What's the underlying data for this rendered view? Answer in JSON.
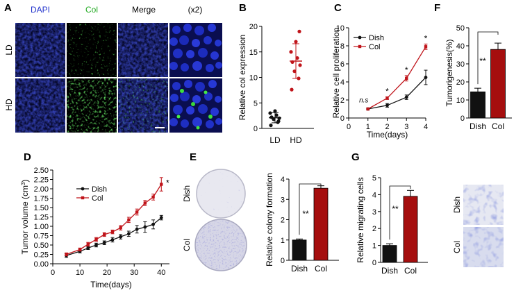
{
  "figure": {
    "panelA": {
      "letter": "A",
      "columns": [
        "DAPI",
        "Col",
        "Merge",
        "(x2)"
      ],
      "column_colors": [
        "#2233cc",
        "#22aa22",
        "#111111",
        "#111111"
      ],
      "rows": [
        "LD",
        "HD"
      ]
    },
    "panelB": {
      "letter": "B"
    },
    "panelC": {
      "letter": "C"
    },
    "panelD": {
      "letter": "D"
    },
    "panelE": {
      "letter": "E",
      "plate_labels": [
        "Dish",
        "Col"
      ]
    },
    "panelF": {
      "letter": "F"
    },
    "panelG": {
      "letter": "G",
      "image_labels": [
        "Dish",
        "Col"
      ]
    }
  },
  "colors": {
    "dish": "#111111",
    "col": "#c0141a",
    "col_bar": "#a50e0e",
    "dapi": "#1e2aa8",
    "col_stain": "#2ac02a",
    "crystal": "#5a5ab4"
  },
  "chart_data": [
    {
      "id": "B",
      "type": "scatter",
      "title": "",
      "xlabel": "",
      "ylabel": "Relative col expression",
      "categories": [
        "LD",
        "HD"
      ],
      "ylim": [
        0,
        20
      ],
      "yticks": [
        "0",
        "5",
        "10",
        "15",
        "20"
      ],
      "series": [
        {
          "name": "LD",
          "color": "#111111",
          "values": [
            0.6,
            1.2,
            1.8,
            2.0,
            2.2,
            2.6,
            3.0,
            3.4,
            1.4
          ],
          "mean": 2.1,
          "sd": 1.0
        },
        {
          "name": "HD",
          "color": "#c0141a",
          "values": [
            7.6,
            9.8,
            11.2,
            12.4,
            13.0,
            13.8,
            15.0,
            17.0,
            19.0
          ],
          "mean": 13.2,
          "sd": 3.4
        }
      ]
    },
    {
      "id": "C",
      "type": "line",
      "title": "",
      "xlabel": "Time(days)",
      "ylabel": "Relative cell proliferation",
      "x": [
        1,
        2,
        3,
        4
      ],
      "xticks": [
        "0",
        "1",
        "2",
        "3",
        "4"
      ],
      "xlim": [
        0,
        4
      ],
      "ylim": [
        0,
        10
      ],
      "yticks": [
        "0",
        "2",
        "4",
        "6",
        "8",
        "10"
      ],
      "series": [
        {
          "name": "Dish",
          "color": "#111111",
          "values": [
            1.0,
            1.4,
            2.3,
            4.5
          ],
          "err": [
            0.1,
            0.2,
            0.25,
            0.8
          ]
        },
        {
          "name": "Col",
          "color": "#c0141a",
          "values": [
            1.0,
            2.2,
            4.4,
            7.9
          ],
          "err": [
            0.1,
            0.15,
            0.3,
            0.3
          ]
        }
      ],
      "annotations": [
        "n.s",
        "*",
        "*",
        "*"
      ],
      "legend": "top-left"
    },
    {
      "id": "D",
      "type": "line",
      "title": "",
      "xlabel": "Time(days)",
      "ylabel": "Tumor volume (cm",
      "ylabel_sup": "3",
      "ylabel_tail": ")",
      "x": [
        5,
        10,
        13,
        16,
        19,
        22,
        25,
        28,
        31,
        34,
        37,
        40
      ],
      "xticks": [
        "0",
        "10",
        "20",
        "30",
        "40"
      ],
      "xlim": [
        0,
        43
      ],
      "ylim": [
        0,
        2.5
      ],
      "yticks": [
        "0.00",
        "0.25",
        "0.50",
        "0.75",
        "1.00",
        "1.25",
        "1.50",
        "1.75",
        "2.00",
        "2.25",
        "2.50"
      ],
      "series": [
        {
          "name": "Dish",
          "color": "#111111",
          "values": [
            0.22,
            0.33,
            0.42,
            0.5,
            0.56,
            0.64,
            0.72,
            0.8,
            0.92,
            0.98,
            1.05,
            1.23
          ],
          "err": [
            0.05,
            0.04,
            0.04,
            0.05,
            0.05,
            0.06,
            0.06,
            0.07,
            0.1,
            0.14,
            0.12,
            0.06
          ]
        },
        {
          "name": "Col",
          "color": "#c0141a",
          "values": [
            0.25,
            0.38,
            0.52,
            0.65,
            0.78,
            0.85,
            0.96,
            1.17,
            1.38,
            1.62,
            1.78,
            2.12
          ],
          "err": [
            0.04,
            0.04,
            0.05,
            0.05,
            0.05,
            0.05,
            0.06,
            0.07,
            0.08,
            0.07,
            0.08,
            0.18
          ]
        }
      ],
      "annotations": [
        "*"
      ],
      "legend": "top-left"
    },
    {
      "id": "E",
      "type": "bar",
      "title": "",
      "xlabel": "",
      "ylabel": "Relative colony formation",
      "categories": [
        "Dish",
        "Col"
      ],
      "values": [
        1.0,
        3.55
      ],
      "err": [
        0.05,
        0.12
      ],
      "colors": [
        "#111111",
        "#a50e0e"
      ],
      "ylim": [
        0,
        4
      ],
      "yticks": [
        "0",
        "1",
        "2",
        "3",
        "4"
      ],
      "annotations": [
        "**"
      ]
    },
    {
      "id": "F",
      "type": "bar",
      "title": "",
      "xlabel": "",
      "ylabel": "Tumorigenesis(%)",
      "categories": [
        "Dish",
        "Col"
      ],
      "values": [
        14.5,
        38
      ],
      "err": [
        2.0,
        3.5
      ],
      "colors": [
        "#111111",
        "#a50e0e"
      ],
      "ylim": [
        0,
        50
      ],
      "yticks": [
        "0",
        "10",
        "20",
        "30",
        "40",
        "50"
      ],
      "annotations": [
        "**"
      ]
    },
    {
      "id": "G",
      "type": "bar",
      "title": "",
      "xlabel": "",
      "ylabel": "Relative migrating cells",
      "categories": [
        "Dish",
        "Col"
      ],
      "values": [
        1.0,
        3.9
      ],
      "err": [
        0.1,
        0.35
      ],
      "colors": [
        "#111111",
        "#a50e0e"
      ],
      "ylim": [
        0,
        5
      ],
      "yticks": [
        "0",
        "1",
        "2",
        "3",
        "4",
        "5"
      ],
      "annotations": [
        "**"
      ]
    }
  ]
}
